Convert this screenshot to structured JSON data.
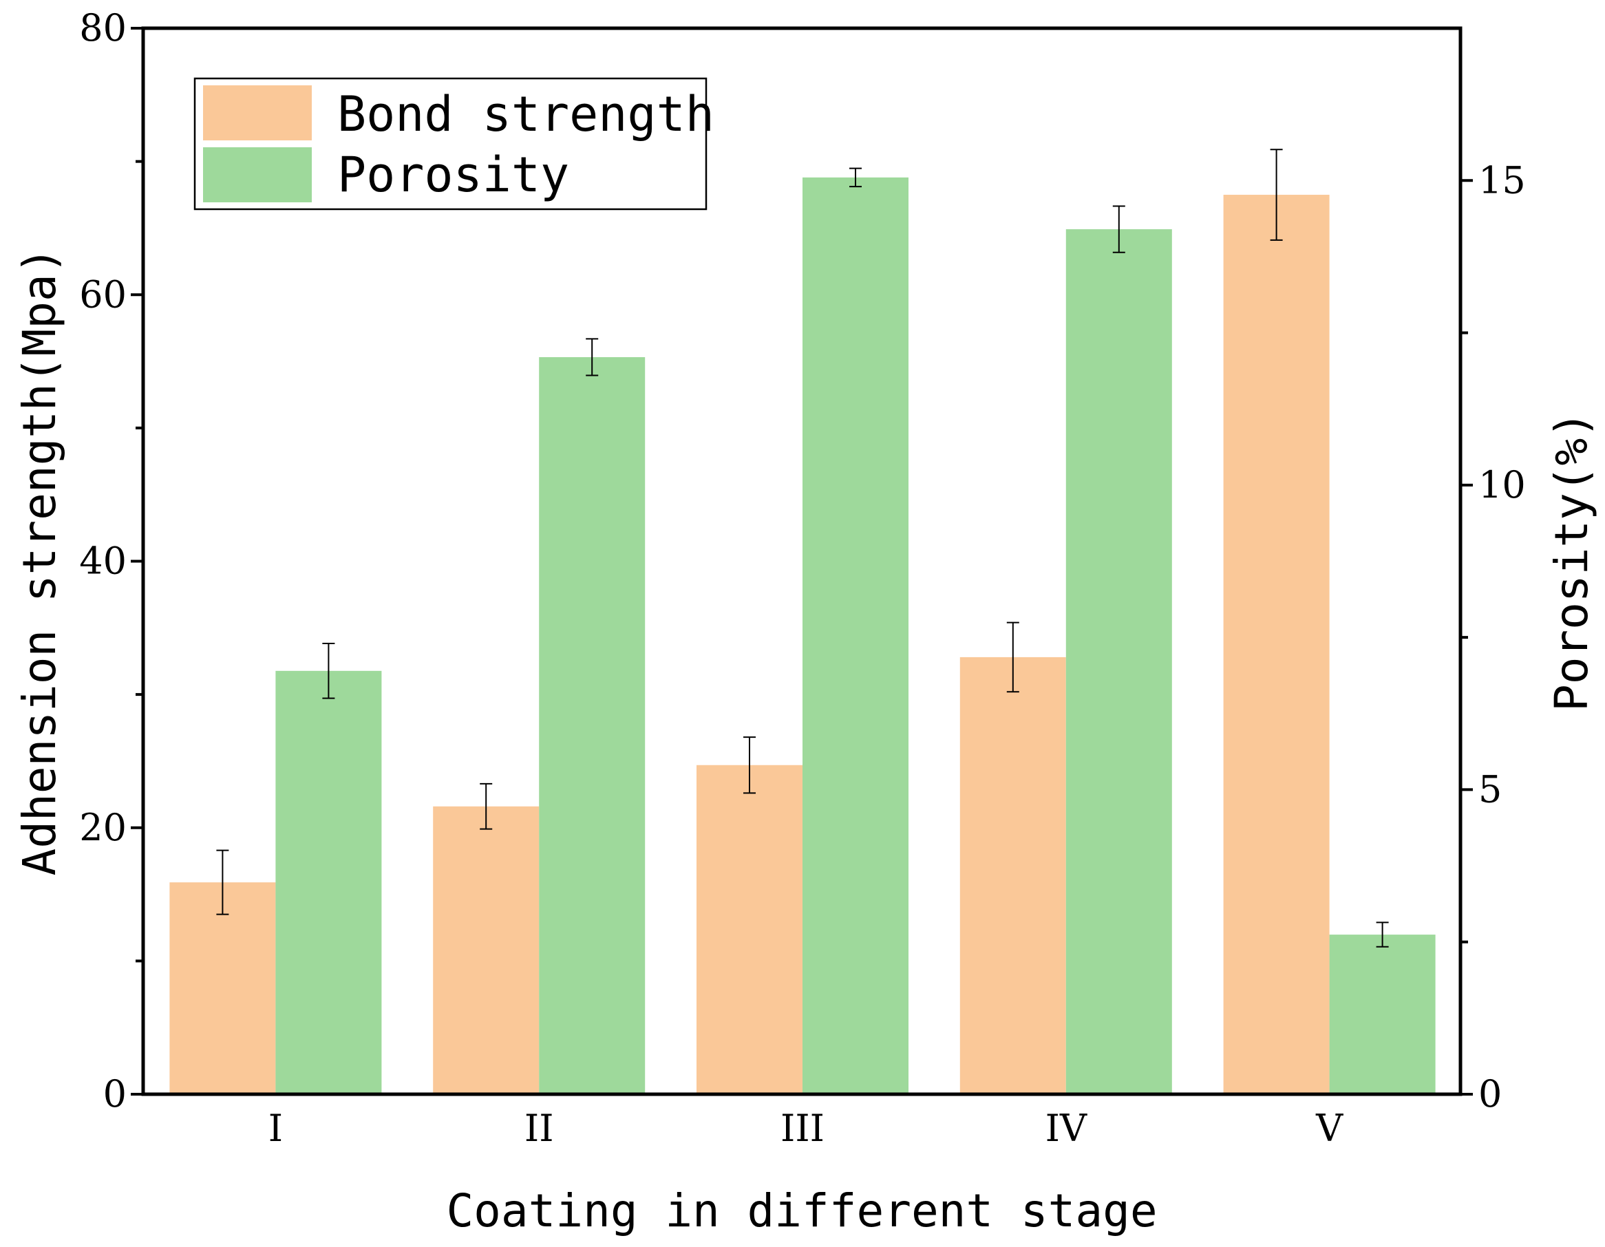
{
  "chart_data": {
    "type": "bar",
    "title": "",
    "xlabel": "Coating in different stage",
    "ylabel": "Adhension strength(Mpa)",
    "y2label": "Porosity(%)",
    "categories": [
      "I",
      "II",
      "III",
      "IV",
      "V"
    ],
    "ylim": [
      0,
      80
    ],
    "y2lim": [
      0,
      17.5
    ],
    "yticks": [
      0,
      20,
      40,
      60,
      80
    ],
    "y2ticks": [
      0,
      5,
      10,
      15
    ],
    "legend_position": "top-left",
    "series": [
      {
        "name": "Bond strength",
        "axis": "left",
        "color": "#FAC898",
        "values": [
          15.9,
          21.6,
          24.7,
          32.8,
          67.5
        ],
        "errors": [
          2.4,
          1.7,
          2.1,
          2.6,
          3.4
        ]
      },
      {
        "name": "Porosity",
        "axis": "right",
        "color": "#9ED99B",
        "values": [
          6.95,
          12.1,
          15.05,
          14.2,
          2.62
        ],
        "errors": [
          0.45,
          0.3,
          0.15,
          0.38,
          0.2
        ]
      }
    ]
  }
}
